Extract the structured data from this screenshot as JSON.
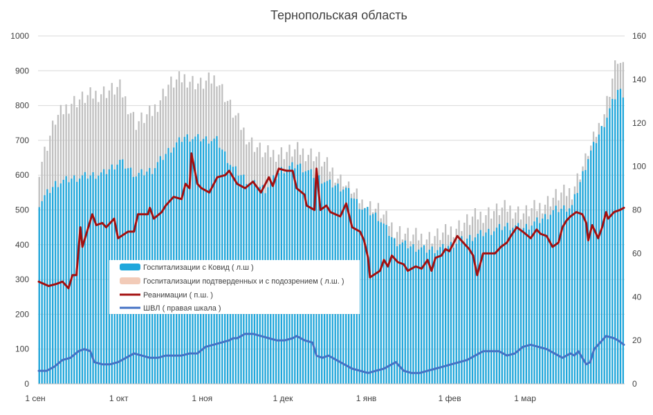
{
  "chart_data": {
    "type": "bar",
    "title": "Тернопольская область",
    "x_labels": [
      "1 сен",
      "1 окт",
      "1 ноя",
      "1 дек",
      "1 янв",
      "1 фев",
      "1 мар"
    ],
    "y_left": {
      "min": 0,
      "max": 1000,
      "step": 100,
      "ticks": [
        "0",
        "100",
        "200",
        "300",
        "400",
        "500",
        "600",
        "700",
        "800",
        "900",
        "1000"
      ]
    },
    "y_right": {
      "min": 0,
      "max": 160,
      "step": 20,
      "ticks": [
        "0",
        "20",
        "40",
        "60",
        "80",
        "100",
        "120",
        "140",
        "160"
      ]
    },
    "grid": true,
    "legend_position": "left-middle",
    "colors": {
      "covid_hosp": "#1ea7dc",
      "suspected_hosp": "#bfbfbf",
      "suspected_legend": "#f2cbb8",
      "reanimation": "#a30f0f",
      "ventilation": "#4472c4"
    },
    "series": [
      {
        "name": "Госпитализации с Ковид ( л.ш )",
        "axis": "left",
        "kind": "bar",
        "keypoints": [
          [
            0,
            520
          ],
          [
            6,
            575
          ],
          [
            12,
            590
          ],
          [
            18,
            598
          ],
          [
            24,
            605
          ],
          [
            30,
            640
          ],
          [
            36,
            600
          ],
          [
            42,
            615
          ],
          [
            48,
            670
          ],
          [
            54,
            710
          ],
          [
            60,
            705
          ],
          [
            66,
            700
          ],
          [
            72,
            620
          ],
          [
            78,
            580
          ],
          [
            84,
            560
          ],
          [
            90,
            615
          ],
          [
            96,
            630
          ],
          [
            102,
            600
          ],
          [
            108,
            575
          ],
          [
            114,
            560
          ],
          [
            120,
            505
          ],
          [
            126,
            480
          ],
          [
            132,
            410
          ],
          [
            138,
            395
          ],
          [
            144,
            385
          ],
          [
            150,
            390
          ],
          [
            156,
            410
          ],
          [
            162,
            425
          ],
          [
            168,
            440
          ],
          [
            174,
            455
          ],
          [
            180,
            448
          ],
          [
            186,
            470
          ],
          [
            192,
            500
          ],
          [
            198,
            510
          ],
          [
            204,
            650
          ],
          [
            210,
            750
          ],
          [
            215,
            845
          ],
          [
            217,
            835
          ]
        ]
      },
      {
        "name": "Госпитализации подтверденных и с подозрением ( л.ш. )",
        "axis": "left",
        "kind": "bar",
        "keypoints": [
          [
            0,
            620
          ],
          [
            6,
            760
          ],
          [
            12,
            810
          ],
          [
            18,
            825
          ],
          [
            24,
            840
          ],
          [
            30,
            850
          ],
          [
            36,
            750
          ],
          [
            42,
            780
          ],
          [
            48,
            860
          ],
          [
            54,
            880
          ],
          [
            60,
            860
          ],
          [
            66,
            880
          ],
          [
            72,
            780
          ],
          [
            78,
            700
          ],
          [
            84,
            660
          ],
          [
            90,
            665
          ],
          [
            96,
            670
          ],
          [
            102,
            660
          ],
          [
            108,
            620
          ],
          [
            114,
            570
          ],
          [
            120,
            520
          ],
          [
            126,
            500
          ],
          [
            132,
            445
          ],
          [
            138,
            425
          ],
          [
            144,
            420
          ],
          [
            150,
            430
          ],
          [
            156,
            455
          ],
          [
            162,
            480
          ],
          [
            168,
            495
          ],
          [
            174,
            505
          ],
          [
            180,
            490
          ],
          [
            186,
            510
          ],
          [
            192,
            540
          ],
          [
            198,
            555
          ],
          [
            204,
            660
          ],
          [
            210,
            780
          ],
          [
            214,
            910
          ],
          [
            215,
            935
          ],
          [
            217,
            900
          ]
        ]
      },
      {
        "name": "Реанимации ( п.ш. )",
        "axis": "right",
        "kind": "line",
        "keypoints": [
          [
            0,
            47
          ],
          [
            5,
            45
          ],
          [
            9,
            46
          ],
          [
            12,
            47
          ],
          [
            15,
            44
          ],
          [
            17,
            50
          ],
          [
            19,
            50
          ],
          [
            21,
            72
          ],
          [
            22,
            63
          ],
          [
            25,
            72
          ],
          [
            27,
            78
          ],
          [
            29,
            73
          ],
          [
            32,
            74
          ],
          [
            34,
            72
          ],
          [
            38,
            76
          ],
          [
            40,
            67
          ],
          [
            45,
            70
          ],
          [
            48,
            70
          ],
          [
            50,
            78
          ],
          [
            55,
            78
          ],
          [
            56,
            81
          ],
          [
            58,
            76
          ],
          [
            62,
            79
          ],
          [
            64,
            82
          ],
          [
            68,
            86
          ],
          [
            72,
            85
          ],
          [
            74,
            92
          ],
          [
            76,
            90
          ],
          [
            77,
            106
          ],
          [
            80,
            92
          ],
          [
            82,
            90
          ],
          [
            86,
            88
          ],
          [
            90,
            95
          ],
          [
            94,
            96
          ],
          [
            96,
            98
          ],
          [
            100,
            92
          ],
          [
            104,
            90
          ],
          [
            108,
            93
          ],
          [
            112,
            88
          ],
          [
            116,
            95
          ],
          [
            118,
            91
          ],
          [
            121,
            99
          ],
          [
            125,
            98
          ],
          [
            128,
            98
          ],
          [
            130,
            90
          ],
          [
            134,
            87
          ],
          [
            135,
            82
          ],
          [
            139,
            80
          ],
          [
            140,
            99
          ],
          [
            142,
            80
          ],
          [
            145,
            82
          ],
          [
            147,
            79
          ],
          [
            152,
            77
          ],
          [
            155,
            83
          ],
          [
            158,
            72
          ],
          [
            162,
            70
          ],
          [
            164,
            66
          ],
          [
            166,
            58
          ],
          [
            167,
            49
          ],
          [
            172,
            52
          ],
          [
            174,
            57
          ],
          [
            176,
            54
          ],
          [
            178,
            59
          ],
          [
            181,
            56
          ],
          [
            184,
            55
          ],
          [
            186,
            52
          ],
          [
            190,
            54
          ],
          [
            193,
            53
          ],
          [
            196,
            57
          ],
          [
            198,
            52
          ],
          [
            200,
            58
          ],
          [
            203,
            59
          ],
          [
            205,
            62
          ],
          [
            207,
            61
          ],
          [
            211,
            68
          ],
          [
            213,
            66
          ],
          [
            217,
            62
          ],
          [
            219,
            59
          ],
          [
            221,
            50
          ],
          [
            224,
            60
          ],
          [
            226,
            60
          ],
          [
            230,
            60
          ],
          [
            233,
            63
          ],
          [
            236,
            65
          ],
          [
            238,
            68
          ],
          [
            241,
            72
          ],
          [
            244,
            70
          ],
          [
            248,
            67
          ],
          [
            251,
            71
          ],
          [
            253,
            69
          ],
          [
            256,
            68
          ],
          [
            259,
            63
          ],
          [
            262,
            65
          ],
          [
            264,
            72
          ],
          [
            266,
            75
          ],
          [
            268,
            77
          ],
          [
            271,
            79
          ],
          [
            274,
            78
          ],
          [
            276,
            74
          ],
          [
            277,
            66
          ],
          [
            279,
            73
          ],
          [
            282,
            67
          ],
          [
            284,
            72
          ],
          [
            286,
            79
          ],
          [
            287,
            76
          ],
          [
            290,
            79
          ],
          [
            293,
            80
          ],
          [
            295,
            81
          ]
        ]
      },
      {
        "name": "ШВЛ ( правая шкала )",
        "axis": "right",
        "kind": "line",
        "keypoints": [
          [
            0,
            6
          ],
          [
            4,
            6
          ],
          [
            8,
            8
          ],
          [
            12,
            11
          ],
          [
            16,
            12
          ],
          [
            20,
            15
          ],
          [
            23,
            16
          ],
          [
            26,
            15
          ],
          [
            28,
            10
          ],
          [
            32,
            9
          ],
          [
            36,
            9
          ],
          [
            40,
            10
          ],
          [
            44,
            12
          ],
          [
            48,
            14
          ],
          [
            52,
            13
          ],
          [
            56,
            12
          ],
          [
            60,
            12
          ],
          [
            64,
            13
          ],
          [
            68,
            13
          ],
          [
            72,
            13
          ],
          [
            76,
            14
          ],
          [
            80,
            14
          ],
          [
            84,
            17
          ],
          [
            88,
            18
          ],
          [
            92,
            19
          ],
          [
            96,
            20
          ],
          [
            98,
            21
          ],
          [
            100,
            21
          ],
          [
            104,
            23
          ],
          [
            108,
            23
          ],
          [
            112,
            22
          ],
          [
            116,
            21
          ],
          [
            120,
            20
          ],
          [
            124,
            20
          ],
          [
            128,
            21
          ],
          [
            130,
            22
          ],
          [
            134,
            20
          ],
          [
            138,
            19
          ],
          [
            140,
            13
          ],
          [
            143,
            12
          ],
          [
            146,
            13
          ],
          [
            150,
            11
          ],
          [
            154,
            9
          ],
          [
            158,
            7
          ],
          [
            162,
            6
          ],
          [
            166,
            5
          ],
          [
            170,
            6
          ],
          [
            174,
            7
          ],
          [
            178,
            9
          ],
          [
            180,
            10
          ],
          [
            184,
            6
          ],
          [
            188,
            5
          ],
          [
            192,
            5
          ],
          [
            196,
            6
          ],
          [
            200,
            7
          ],
          [
            204,
            8
          ],
          [
            208,
            9
          ],
          [
            212,
            10
          ],
          [
            216,
            11
          ],
          [
            220,
            13
          ],
          [
            224,
            15
          ],
          [
            228,
            15
          ],
          [
            232,
            15
          ],
          [
            236,
            13
          ],
          [
            240,
            14
          ],
          [
            244,
            17
          ],
          [
            248,
            18
          ],
          [
            252,
            17
          ],
          [
            256,
            16
          ],
          [
            260,
            14
          ],
          [
            264,
            12
          ],
          [
            268,
            14
          ],
          [
            270,
            13
          ],
          [
            272,
            15
          ],
          [
            276,
            9
          ],
          [
            278,
            10
          ],
          [
            280,
            16
          ],
          [
            284,
            20
          ],
          [
            286,
            22
          ],
          [
            290,
            21
          ],
          [
            292,
            20
          ],
          [
            295,
            18
          ]
        ]
      }
    ]
  }
}
